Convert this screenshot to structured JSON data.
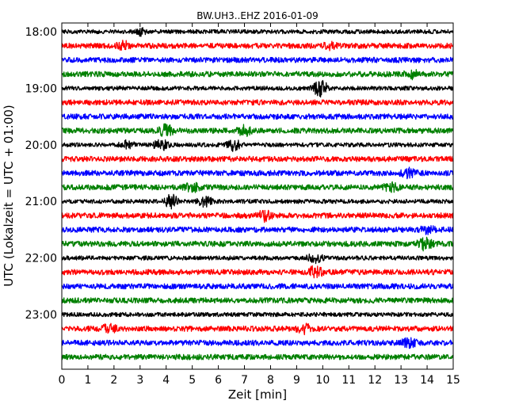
{
  "chart_data": {
    "type": "line",
    "title": "BW.UH3..EHZ 2016-01-09",
    "xlabel": "Zeit  [min]",
    "ylabel": "UTC (Lokalzeit = UTC + 01:00)",
    "xlim": [
      0,
      15
    ],
    "x_ticks": [
      "0",
      "1",
      "2",
      "3",
      "4",
      "5",
      "6",
      "7",
      "8",
      "9",
      "10",
      "11",
      "12",
      "13",
      "14",
      "15"
    ],
    "y_ticks": [
      "18:00",
      "19:00",
      "20:00",
      "21:00",
      "22:00",
      "23:00"
    ],
    "grid": false,
    "trace_interval_min": 15,
    "color_cycle": [
      "#000000",
      "#ff0000",
      "#0000ff",
      "#008000"
    ],
    "rows": [
      {
        "start": "18:00",
        "color": "#000000",
        "amplitude": 0.35,
        "events": [
          {
            "x": 3.0,
            "amp": 0.5
          }
        ]
      },
      {
        "start": "18:15",
        "color": "#ff0000",
        "amplitude": 0.45,
        "events": [
          {
            "x": 2.4,
            "amp": 0.6
          },
          {
            "x": 10.3,
            "amp": 0.5
          }
        ]
      },
      {
        "start": "18:30",
        "color": "#0000ff",
        "amplitude": 0.45,
        "events": []
      },
      {
        "start": "18:45",
        "color": "#008000",
        "amplitude": 0.45,
        "events": [
          {
            "x": 13.4,
            "amp": 0.6
          }
        ]
      },
      {
        "start": "19:00",
        "color": "#000000",
        "amplitude": 0.35,
        "events": [
          {
            "x": 9.9,
            "amp": 1.4
          }
        ]
      },
      {
        "start": "19:15",
        "color": "#ff0000",
        "amplitude": 0.45,
        "events": []
      },
      {
        "start": "19:30",
        "color": "#0000ff",
        "amplitude": 0.45,
        "events": []
      },
      {
        "start": "19:45",
        "color": "#008000",
        "amplitude": 0.45,
        "events": [
          {
            "x": 4.0,
            "amp": 0.9
          },
          {
            "x": 7.0,
            "amp": 0.7
          }
        ]
      },
      {
        "start": "20:00",
        "color": "#000000",
        "amplitude": 0.35,
        "events": [
          {
            "x": 2.5,
            "amp": 0.6
          },
          {
            "x": 3.8,
            "amp": 0.9
          },
          {
            "x": 6.6,
            "amp": 0.9
          }
        ]
      },
      {
        "start": "20:15",
        "color": "#ff0000",
        "amplitude": 0.45,
        "events": []
      },
      {
        "start": "20:30",
        "color": "#0000ff",
        "amplitude": 0.45,
        "events": [
          {
            "x": 13.3,
            "amp": 0.7
          }
        ]
      },
      {
        "start": "20:45",
        "color": "#008000",
        "amplitude": 0.45,
        "events": [
          {
            "x": 5.0,
            "amp": 0.7
          },
          {
            "x": 12.6,
            "amp": 0.7
          }
        ]
      },
      {
        "start": "21:00",
        "color": "#000000",
        "amplitude": 0.35,
        "events": [
          {
            "x": 4.2,
            "amp": 1.1
          },
          {
            "x": 5.5,
            "amp": 0.8
          }
        ]
      },
      {
        "start": "21:15",
        "color": "#ff0000",
        "amplitude": 0.45,
        "events": [
          {
            "x": 7.8,
            "amp": 0.8
          }
        ]
      },
      {
        "start": "21:30",
        "color": "#0000ff",
        "amplitude": 0.45,
        "events": [
          {
            "x": 14.0,
            "amp": 0.6
          }
        ]
      },
      {
        "start": "21:45",
        "color": "#008000",
        "amplitude": 0.45,
        "events": [
          {
            "x": 13.9,
            "amp": 0.9
          }
        ]
      },
      {
        "start": "22:00",
        "color": "#000000",
        "amplitude": 0.35,
        "events": [
          {
            "x": 9.7,
            "amp": 0.8
          }
        ]
      },
      {
        "start": "22:15",
        "color": "#ff0000",
        "amplitude": 0.45,
        "events": [
          {
            "x": 9.7,
            "amp": 0.9
          }
        ]
      },
      {
        "start": "22:30",
        "color": "#0000ff",
        "amplitude": 0.45,
        "events": []
      },
      {
        "start": "22:45",
        "color": "#008000",
        "amplitude": 0.45,
        "events": []
      },
      {
        "start": "23:00",
        "color": "#000000",
        "amplitude": 0.35,
        "events": []
      },
      {
        "start": "23:15",
        "color": "#ff0000",
        "amplitude": 0.45,
        "events": [
          {
            "x": 1.8,
            "amp": 0.6
          },
          {
            "x": 9.3,
            "amp": 0.6
          }
        ]
      },
      {
        "start": "23:30",
        "color": "#0000ff",
        "amplitude": 0.45,
        "events": [
          {
            "x": 13.3,
            "amp": 0.6
          }
        ]
      },
      {
        "start": "23:45",
        "color": "#008000",
        "amplitude": 0.45,
        "events": []
      }
    ]
  }
}
